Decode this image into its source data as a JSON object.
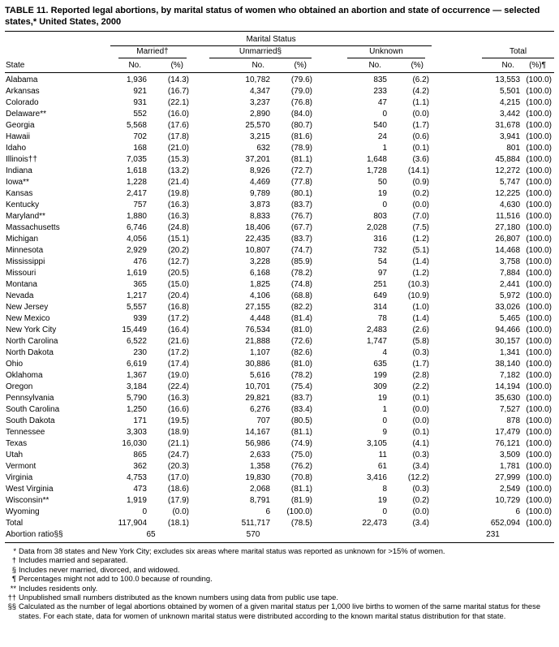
{
  "title": "TABLE 11. Reported legal abortions, by marital status of women who obtained an abortion and state of occurrence — selected states,* United States, 2000",
  "colors": {
    "text": "#000000",
    "background": "#ffffff",
    "rule": "#000000"
  },
  "table": {
    "group_header": "Marital Status",
    "col_groups": [
      "Married†",
      "Unmarried§",
      "Unknown",
      "Total"
    ],
    "state_header": "State",
    "sub_headers": [
      "No.",
      "(%)",
      "No.",
      "(%)",
      "No.",
      "(%)",
      "No.",
      "(%)¶"
    ],
    "rows": [
      [
        "Alabama",
        "1,936",
        "(14.3)",
        "10,782",
        "(79.6)",
        "835",
        "(6.2)",
        "13,553",
        "(100.0)"
      ],
      [
        "Arkansas",
        "921",
        "(16.7)",
        "4,347",
        "(79.0)",
        "233",
        "(4.2)",
        "5,501",
        "(100.0)"
      ],
      [
        "Colorado",
        "931",
        "(22.1)",
        "3,237",
        "(76.8)",
        "47",
        "(1.1)",
        "4,215",
        "(100.0)"
      ],
      [
        "Delaware**",
        "552",
        "(16.0)",
        "2,890",
        "(84.0)",
        "0",
        "(0.0)",
        "3,442",
        "(100.0)"
      ],
      [
        "Georgia",
        "5,568",
        "(17.6)",
        "25,570",
        "(80.7)",
        "540",
        "(1.7)",
        "31,678",
        "(100.0)"
      ],
      [
        "Hawaii",
        "702",
        "(17.8)",
        "3,215",
        "(81.6)",
        "24",
        "(0.6)",
        "3,941",
        "(100.0)"
      ],
      [
        "Idaho",
        "168",
        "(21.0)",
        "632",
        "(78.9)",
        "1",
        "(0.1)",
        "801",
        "(100.0)"
      ],
      [
        "Illinois††",
        "7,035",
        "(15.3)",
        "37,201",
        "(81.1)",
        "1,648",
        "(3.6)",
        "45,884",
        "(100.0)"
      ],
      [
        "Indiana",
        "1,618",
        "(13.2)",
        "8,926",
        "(72.7)",
        "1,728",
        "(14.1)",
        "12,272",
        "(100.0)"
      ],
      [
        "Iowa**",
        "1,228",
        "(21.4)",
        "4,469",
        "(77.8)",
        "50",
        "(0.9)",
        "5,747",
        "(100.0)"
      ],
      [
        "Kansas",
        "2,417",
        "(19.8)",
        "9,789",
        "(80.1)",
        "19",
        "(0.2)",
        "12,225",
        "(100.0)"
      ],
      [
        "Kentucky",
        "757",
        "(16.3)",
        "3,873",
        "(83.7)",
        "0",
        "(0.0)",
        "4,630",
        "(100.0)"
      ],
      [
        "Maryland**",
        "1,880",
        "(16.3)",
        "8,833",
        "(76.7)",
        "803",
        "(7.0)",
        "11,516",
        "(100.0)"
      ],
      [
        "Massachusetts",
        "6,746",
        "(24.8)",
        "18,406",
        "(67.7)",
        "2,028",
        "(7.5)",
        "27,180",
        "(100.0)"
      ],
      [
        "Michigan",
        "4,056",
        "(15.1)",
        "22,435",
        "(83.7)",
        "316",
        "(1.2)",
        "26,807",
        "(100.0)"
      ],
      [
        "Minnesota",
        "2,929",
        "(20.2)",
        "10,807",
        "(74.7)",
        "732",
        "(5.1)",
        "14,468",
        "(100.0)"
      ],
      [
        "Mississippi",
        "476",
        "(12.7)",
        "3,228",
        "(85.9)",
        "54",
        "(1.4)",
        "3,758",
        "(100.0)"
      ],
      [
        "Missouri",
        "1,619",
        "(20.5)",
        "6,168",
        "(78.2)",
        "97",
        "(1.2)",
        "7,884",
        "(100.0)"
      ],
      [
        "Montana",
        "365",
        "(15.0)",
        "1,825",
        "(74.8)",
        "251",
        "(10.3)",
        "2,441",
        "(100.0)"
      ],
      [
        "Nevada",
        "1,217",
        "(20.4)",
        "4,106",
        "(68.8)",
        "649",
        "(10.9)",
        "5,972",
        "(100.0)"
      ],
      [
        "New Jersey",
        "5,557",
        "(16.8)",
        "27,155",
        "(82.2)",
        "314",
        "(1.0)",
        "33,026",
        "(100.0)"
      ],
      [
        "New Mexico",
        "939",
        "(17.2)",
        "4,448",
        "(81.4)",
        "78",
        "(1.4)",
        "5,465",
        "(100.0)"
      ],
      [
        "New York City",
        "15,449",
        "(16.4)",
        "76,534",
        "(81.0)",
        "2,483",
        "(2.6)",
        "94,466",
        "(100.0)"
      ],
      [
        "North Carolina",
        "6,522",
        "(21.6)",
        "21,888",
        "(72.6)",
        "1,747",
        "(5.8)",
        "30,157",
        "(100.0)"
      ],
      [
        "North Dakota",
        "230",
        "(17.2)",
        "1,107",
        "(82.6)",
        "4",
        "(0.3)",
        "1,341",
        "(100.0)"
      ],
      [
        "Ohio",
        "6,619",
        "(17.4)",
        "30,886",
        "(81.0)",
        "635",
        "(1.7)",
        "38,140",
        "(100.0)"
      ],
      [
        "Oklahoma",
        "1,367",
        "(19.0)",
        "5,616",
        "(78.2)",
        "199",
        "(2.8)",
        "7,182",
        "(100.0)"
      ],
      [
        "Oregon",
        "3,184",
        "(22.4)",
        "10,701",
        "(75.4)",
        "309",
        "(2.2)",
        "14,194",
        "(100.0)"
      ],
      [
        "Pennsylvania",
        "5,790",
        "(16.3)",
        "29,821",
        "(83.7)",
        "19",
        "(0.1)",
        "35,630",
        "(100.0)"
      ],
      [
        "South Carolina",
        "1,250",
        "(16.6)",
        "6,276",
        "(83.4)",
        "1",
        "(0.0)",
        "7,527",
        "(100.0)"
      ],
      [
        "South Dakota",
        "171",
        "(19.5)",
        "707",
        "(80.5)",
        "0",
        "(0.0)",
        "878",
        "(100.0)"
      ],
      [
        "Tennessee",
        "3,303",
        "(18.9)",
        "14,167",
        "(81.1)",
        "9",
        "(0.1)",
        "17,479",
        "(100.0)"
      ],
      [
        "Texas",
        "16,030",
        "(21.1)",
        "56,986",
        "(74.9)",
        "3,105",
        "(4.1)",
        "76,121",
        "(100.0)"
      ],
      [
        "Utah",
        "865",
        "(24.7)",
        "2,633",
        "(75.0)",
        "11",
        "(0.3)",
        "3,509",
        "(100.0)"
      ],
      [
        "Vermont",
        "362",
        "(20.3)",
        "1,358",
        "(76.2)",
        "61",
        "(3.4)",
        "1,781",
        "(100.0)"
      ],
      [
        "Virginia",
        "4,753",
        "(17.0)",
        "19,830",
        "(70.8)",
        "3,416",
        "(12.2)",
        "27,999",
        "(100.0)"
      ],
      [
        "West Virginia",
        "473",
        "(18.6)",
        "2,068",
        "(81.1)",
        "8",
        "(0.3)",
        "2,549",
        "(100.0)"
      ],
      [
        "Wisconsin**",
        "1,919",
        "(17.9)",
        "8,791",
        "(81.9)",
        "19",
        "(0.2)",
        "10,729",
        "(100.0)"
      ],
      [
        "Wyoming",
        "0",
        "(0.0)",
        "6",
        "(100.0)",
        "0",
        "(0.0)",
        "6",
        "(100.0)"
      ],
      [
        "Total",
        "117,904",
        "(18.1)",
        "511,717",
        "(78.5)",
        "22,473",
        "(3.4)",
        "652,094",
        "(100.0)"
      ]
    ],
    "ratio_row": {
      "label": "Abortion ratio§§",
      "married": "65",
      "unmarried": "570",
      "unknown": "",
      "total": "231"
    }
  },
  "footnotes": [
    {
      "marker": "*",
      "text": "Data from 38 states and New York City; excludes six areas where marital status was reported as unknown for >15% of women."
    },
    {
      "marker": "†",
      "text": "Includes married and separated."
    },
    {
      "marker": "§",
      "text": "Includes never married, divorced, and widowed."
    },
    {
      "marker": "¶",
      "text": "Percentages might not add to 100.0 because of rounding."
    },
    {
      "marker": "**",
      "text": "Includes residents only."
    },
    {
      "marker": "††",
      "text": "Unpublished small numbers distributed as the known numbers using data from public use tape."
    },
    {
      "marker": "§§",
      "text": "Calculated as the number of legal abortions obtained by women of a given marital status per 1,000 live births to women of the same marital status for these states. For each state, data for women of unknown marital status were distributed according to the known marital status distribution for that state."
    }
  ]
}
